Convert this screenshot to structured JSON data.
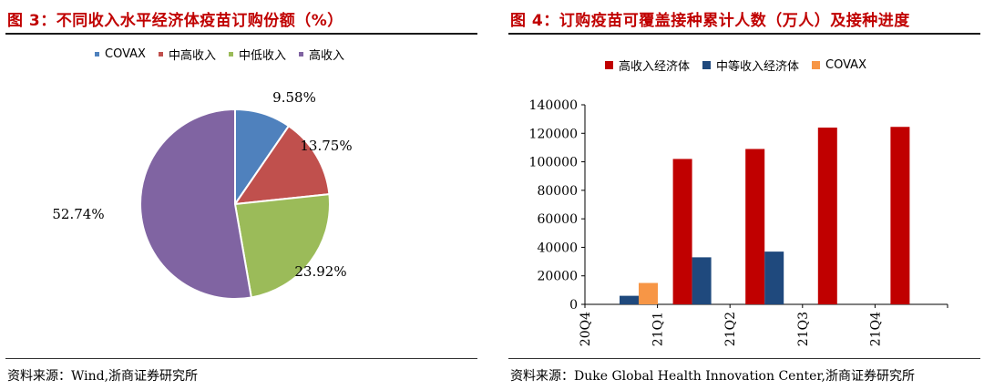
{
  "left": {
    "title": "图 3：不同收入水平经济体疫苗订购份额（%）",
    "source": "资料来源：Wind,浙商证券研究所"
  },
  "right": {
    "title": "图 4：订购疫苗可覆盖接种累计人数（万人）及接种进度",
    "source": "资料来源：Duke Global Health Innovation Center,浙商证券研究所"
  },
  "chart_data": [
    {
      "type": "pie",
      "title": "",
      "slices": [
        {
          "label": "COVAX",
          "value": 9.58,
          "display": "9.58%",
          "color": "#4f81bd"
        },
        {
          "label": "中高收入",
          "value": 13.75,
          "display": "13.75%",
          "color": "#c0504d"
        },
        {
          "label": "中低收入",
          "value": 23.92,
          "display": "23.92%",
          "color": "#9bbb59"
        },
        {
          "label": "高收入",
          "value": 52.74,
          "display": "52.74%",
          "color": "#8064a2"
        }
      ],
      "legend_position": "top"
    },
    {
      "type": "bar",
      "title": "",
      "categories": [
        "20Q4",
        "21Q1",
        "21Q2",
        "21Q3",
        "21Q4"
      ],
      "series": [
        {
          "name": "高收入经济体",
          "color": "#c00000",
          "values": [
            0,
            102000,
            109000,
            124000,
            124500
          ]
        },
        {
          "name": "中等收入经济体",
          "color": "#1f497d",
          "values": [
            6000,
            33000,
            37000,
            0,
            0
          ]
        },
        {
          "name": "COVAX",
          "color": "#f79646",
          "values": [
            15000,
            0,
            0,
            0,
            0
          ]
        }
      ],
      "ylim": [
        0,
        140000
      ],
      "yticks": [
        "0",
        "20000",
        "40000",
        "60000",
        "80000",
        "100000",
        "120000",
        "140000"
      ],
      "legend_position": "top",
      "grid": false
    }
  ]
}
